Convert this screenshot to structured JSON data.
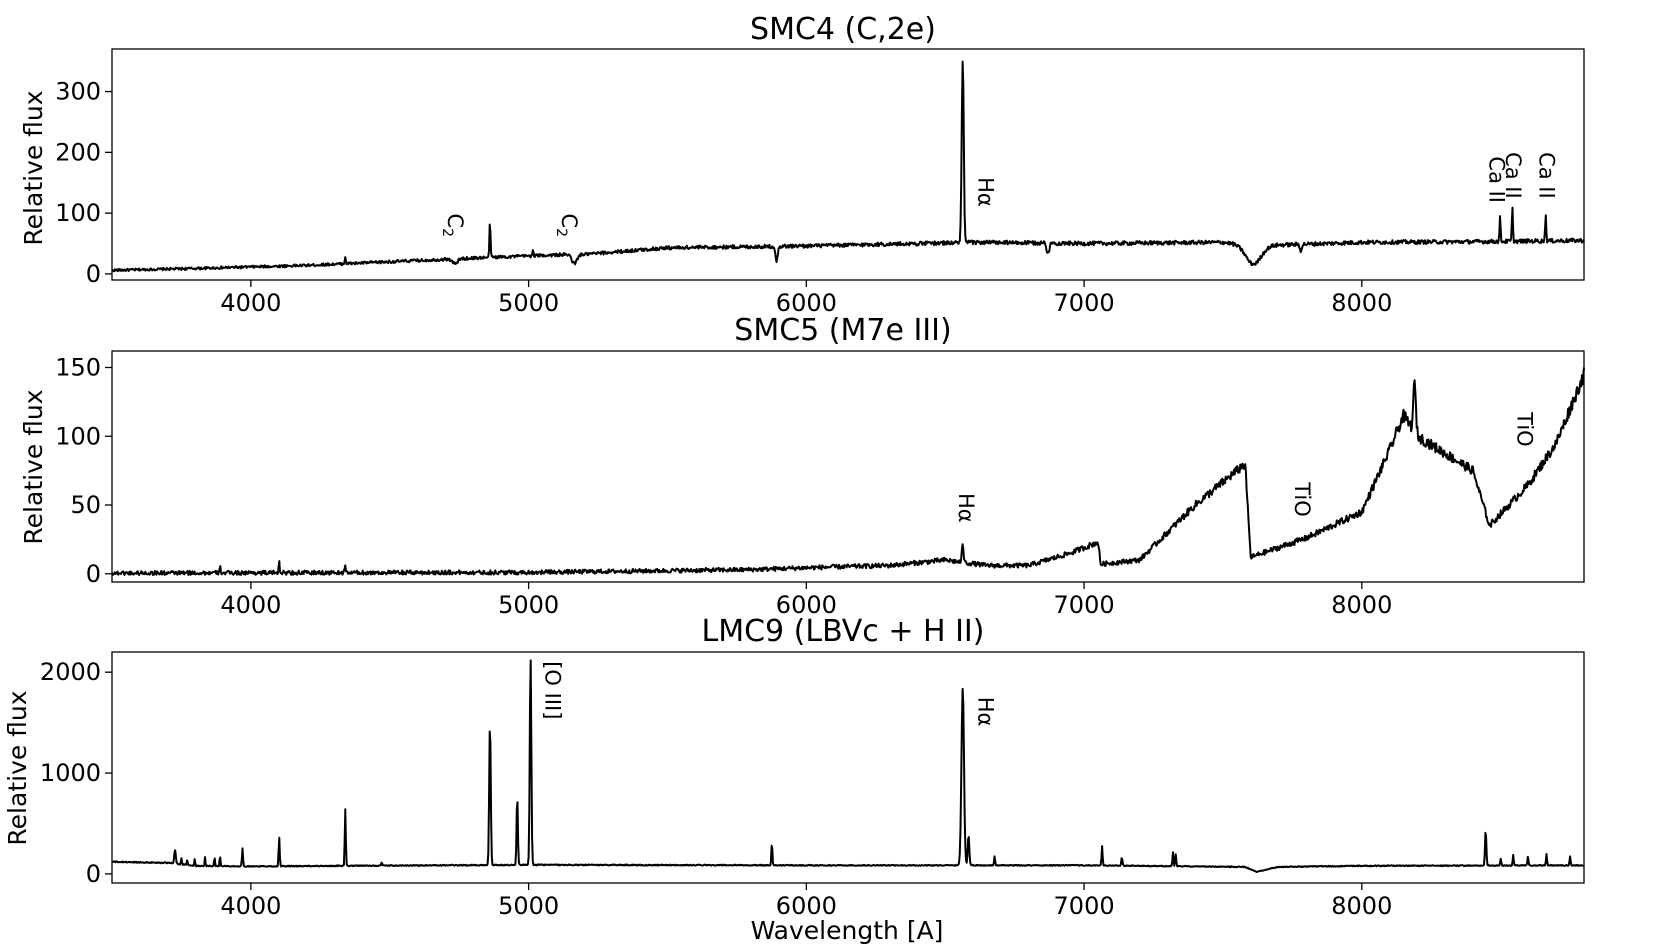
{
  "chart_data": [
    {
      "type": "line",
      "title": "SMC4 (C,2e)",
      "xlabel": "",
      "ylabel": "Relative flux",
      "xlim": [
        3500,
        8800
      ],
      "ylim": [
        -10,
        370
      ],
      "xticks": [
        4000,
        5000,
        6000,
        7000,
        8000
      ],
      "yticks": [
        0,
        100,
        200,
        300
      ],
      "grid": false,
      "continuum": [
        [
          3500,
          6
        ],
        [
          3800,
          9
        ],
        [
          4200,
          14
        ],
        [
          4600,
          22
        ],
        [
          4900,
          28
        ],
        [
          5150,
          32
        ],
        [
          5200,
          32
        ],
        [
          5500,
          43
        ],
        [
          6000,
          46
        ],
        [
          6400,
          50
        ],
        [
          6600,
          52
        ],
        [
          7000,
          50
        ],
        [
          7500,
          52
        ],
        [
          7600,
          46
        ],
        [
          8000,
          52
        ],
        [
          8400,
          53
        ],
        [
          8800,
          55
        ]
      ],
      "features": [
        {
          "x": 4340,
          "h": 12,
          "w": 4
        },
        {
          "x": 4735,
          "h": -8,
          "w": 20
        },
        {
          "x": 4861,
          "h": 62,
          "w": 4
        },
        {
          "x": 5015,
          "h": 10,
          "w": 4
        },
        {
          "x": 5165,
          "h": -15,
          "w": 20
        },
        {
          "x": 5893,
          "h": -25,
          "w": 8
        },
        {
          "x": 6563,
          "h": 300,
          "w": 8
        },
        {
          "x": 6870,
          "h": -18,
          "w": 10
        },
        {
          "x": 7610,
          "h": -30,
          "w": 60
        },
        {
          "x": 7780,
          "h": -10,
          "w": 8
        },
        {
          "x": 8498,
          "h": 40,
          "w": 4
        },
        {
          "x": 8542,
          "h": 55,
          "w": 4
        },
        {
          "x": 8662,
          "h": 45,
          "w": 4
        }
      ],
      "noise": 3.5,
      "annotations": [
        {
          "text": "C",
          "sub": "2",
          "x": 4710,
          "y": 80
        },
        {
          "text": "C",
          "sub": "2",
          "x": 5120,
          "y": 80
        },
        {
          "text": "Hα",
          "x": 6620,
          "y": 135
        },
        {
          "text": "Ca II",
          "x": 8460,
          "y": 155
        },
        {
          "text": "Ca II",
          "x": 8520,
          "y": 162
        },
        {
          "text": "Ca II",
          "x": 8640,
          "y": 162
        }
      ]
    },
    {
      "type": "line",
      "title": "SMC5 (M7e III)",
      "xlabel": "",
      "ylabel": "Relative flux",
      "xlim": [
        3500,
        8800
      ],
      "ylim": [
        -6,
        162
      ],
      "xticks": [
        4000,
        5000,
        6000,
        7000,
        8000
      ],
      "yticks": [
        0,
        50,
        100,
        150
      ],
      "grid": false,
      "continuum": [
        [
          3500,
          0.5
        ],
        [
          5000,
          1
        ],
        [
          5800,
          3
        ],
        [
          6100,
          5
        ],
        [
          6300,
          6
        ],
        [
          6500,
          10
        ],
        [
          6650,
          6
        ],
        [
          6800,
          6
        ],
        [
          6950,
          15
        ],
        [
          7050,
          23
        ],
        [
          7060,
          7
        ],
        [
          7200,
          10
        ],
        [
          7400,
          50
        ],
        [
          7580,
          80
        ],
        [
          7600,
          12
        ],
        [
          7800,
          26
        ],
        [
          8000,
          45
        ],
        [
          8100,
          90
        ],
        [
          8150,
          115
        ],
        [
          8200,
          100
        ],
        [
          8400,
          75
        ],
        [
          8460,
          35
        ],
        [
          8600,
          65
        ],
        [
          8700,
          95
        ],
        [
          8800,
          145
        ]
      ],
      "features": [
        {
          "x": 3890,
          "h": 4,
          "w": 4
        },
        {
          "x": 4102,
          "h": 9,
          "w": 4
        },
        {
          "x": 4340,
          "h": 4,
          "w": 4
        },
        {
          "x": 6563,
          "h": 14,
          "w": 6
        },
        {
          "x": 8190,
          "h": 35,
          "w": 10
        }
      ],
      "noise": 3,
      "annotations": [
        {
          "text": "Hα",
          "x": 6550,
          "y": 48
        },
        {
          "text": "TiO",
          "x": 7760,
          "y": 54
        },
        {
          "text": "TiO",
          "x": 8560,
          "y": 105
        }
      ]
    },
    {
      "type": "line",
      "title": "LMC9 (LBVc + H II)",
      "xlabel": "Wavelength [A]",
      "ylabel": "Relative flux",
      "xlim": [
        3500,
        8800
      ],
      "ylim": [
        -90,
        2200
      ],
      "xticks": [
        4000,
        5000,
        6000,
        7000,
        8000
      ],
      "yticks": [
        0,
        1000,
        2000
      ],
      "grid": false,
      "continuum": [
        [
          3500,
          120
        ],
        [
          3700,
          110
        ],
        [
          3800,
          80
        ],
        [
          4000,
          75
        ],
        [
          5000,
          90
        ],
        [
          6000,
          85
        ],
        [
          7000,
          85
        ],
        [
          7580,
          70
        ],
        [
          7620,
          20
        ],
        [
          7700,
          70
        ],
        [
          8000,
          80
        ],
        [
          8800,
          85
        ]
      ],
      "features": [
        {
          "x": 3727,
          "h": 140,
          "w": 6
        },
        {
          "x": 3750,
          "h": 60,
          "w": 3
        },
        {
          "x": 3771,
          "h": 60,
          "w": 3
        },
        {
          "x": 3798,
          "h": 70,
          "w": 3
        },
        {
          "x": 3835,
          "h": 90,
          "w": 3
        },
        {
          "x": 3869,
          "h": 100,
          "w": 3
        },
        {
          "x": 3889,
          "h": 110,
          "w": 3
        },
        {
          "x": 3970,
          "h": 180,
          "w": 4
        },
        {
          "x": 4102,
          "h": 290,
          "w": 4
        },
        {
          "x": 4340,
          "h": 560,
          "w": 4
        },
        {
          "x": 4471,
          "h": 40,
          "w": 3
        },
        {
          "x": 4861,
          "h": 1420,
          "w": 6
        },
        {
          "x": 4959,
          "h": 680,
          "w": 5
        },
        {
          "x": 5007,
          "h": 2060,
          "w": 6
        },
        {
          "x": 5876,
          "h": 230,
          "w": 4
        },
        {
          "x": 6563,
          "h": 1760,
          "w": 10
        },
        {
          "x": 6584,
          "h": 300,
          "w": 6
        },
        {
          "x": 6678,
          "h": 90,
          "w": 4
        },
        {
          "x": 7065,
          "h": 190,
          "w": 4
        },
        {
          "x": 7136,
          "h": 90,
          "w": 4
        },
        {
          "x": 7320,
          "h": 140,
          "w": 4
        },
        {
          "x": 7330,
          "h": 120,
          "w": 4
        },
        {
          "x": 8446,
          "h": 360,
          "w": 5
        },
        {
          "x": 8500,
          "h": 70,
          "w": 4
        },
        {
          "x": 8545,
          "h": 100,
          "w": 4
        },
        {
          "x": 8598,
          "h": 90,
          "w": 4
        },
        {
          "x": 8665,
          "h": 110,
          "w": 4
        },
        {
          "x": 8750,
          "h": 90,
          "w": 4
        }
      ],
      "noise": 4,
      "annotations": [
        {
          "text": "[O III]",
          "x": 5060,
          "y": 1820
        },
        {
          "text": "Hα",
          "x": 6620,
          "y": 1610
        }
      ]
    }
  ]
}
